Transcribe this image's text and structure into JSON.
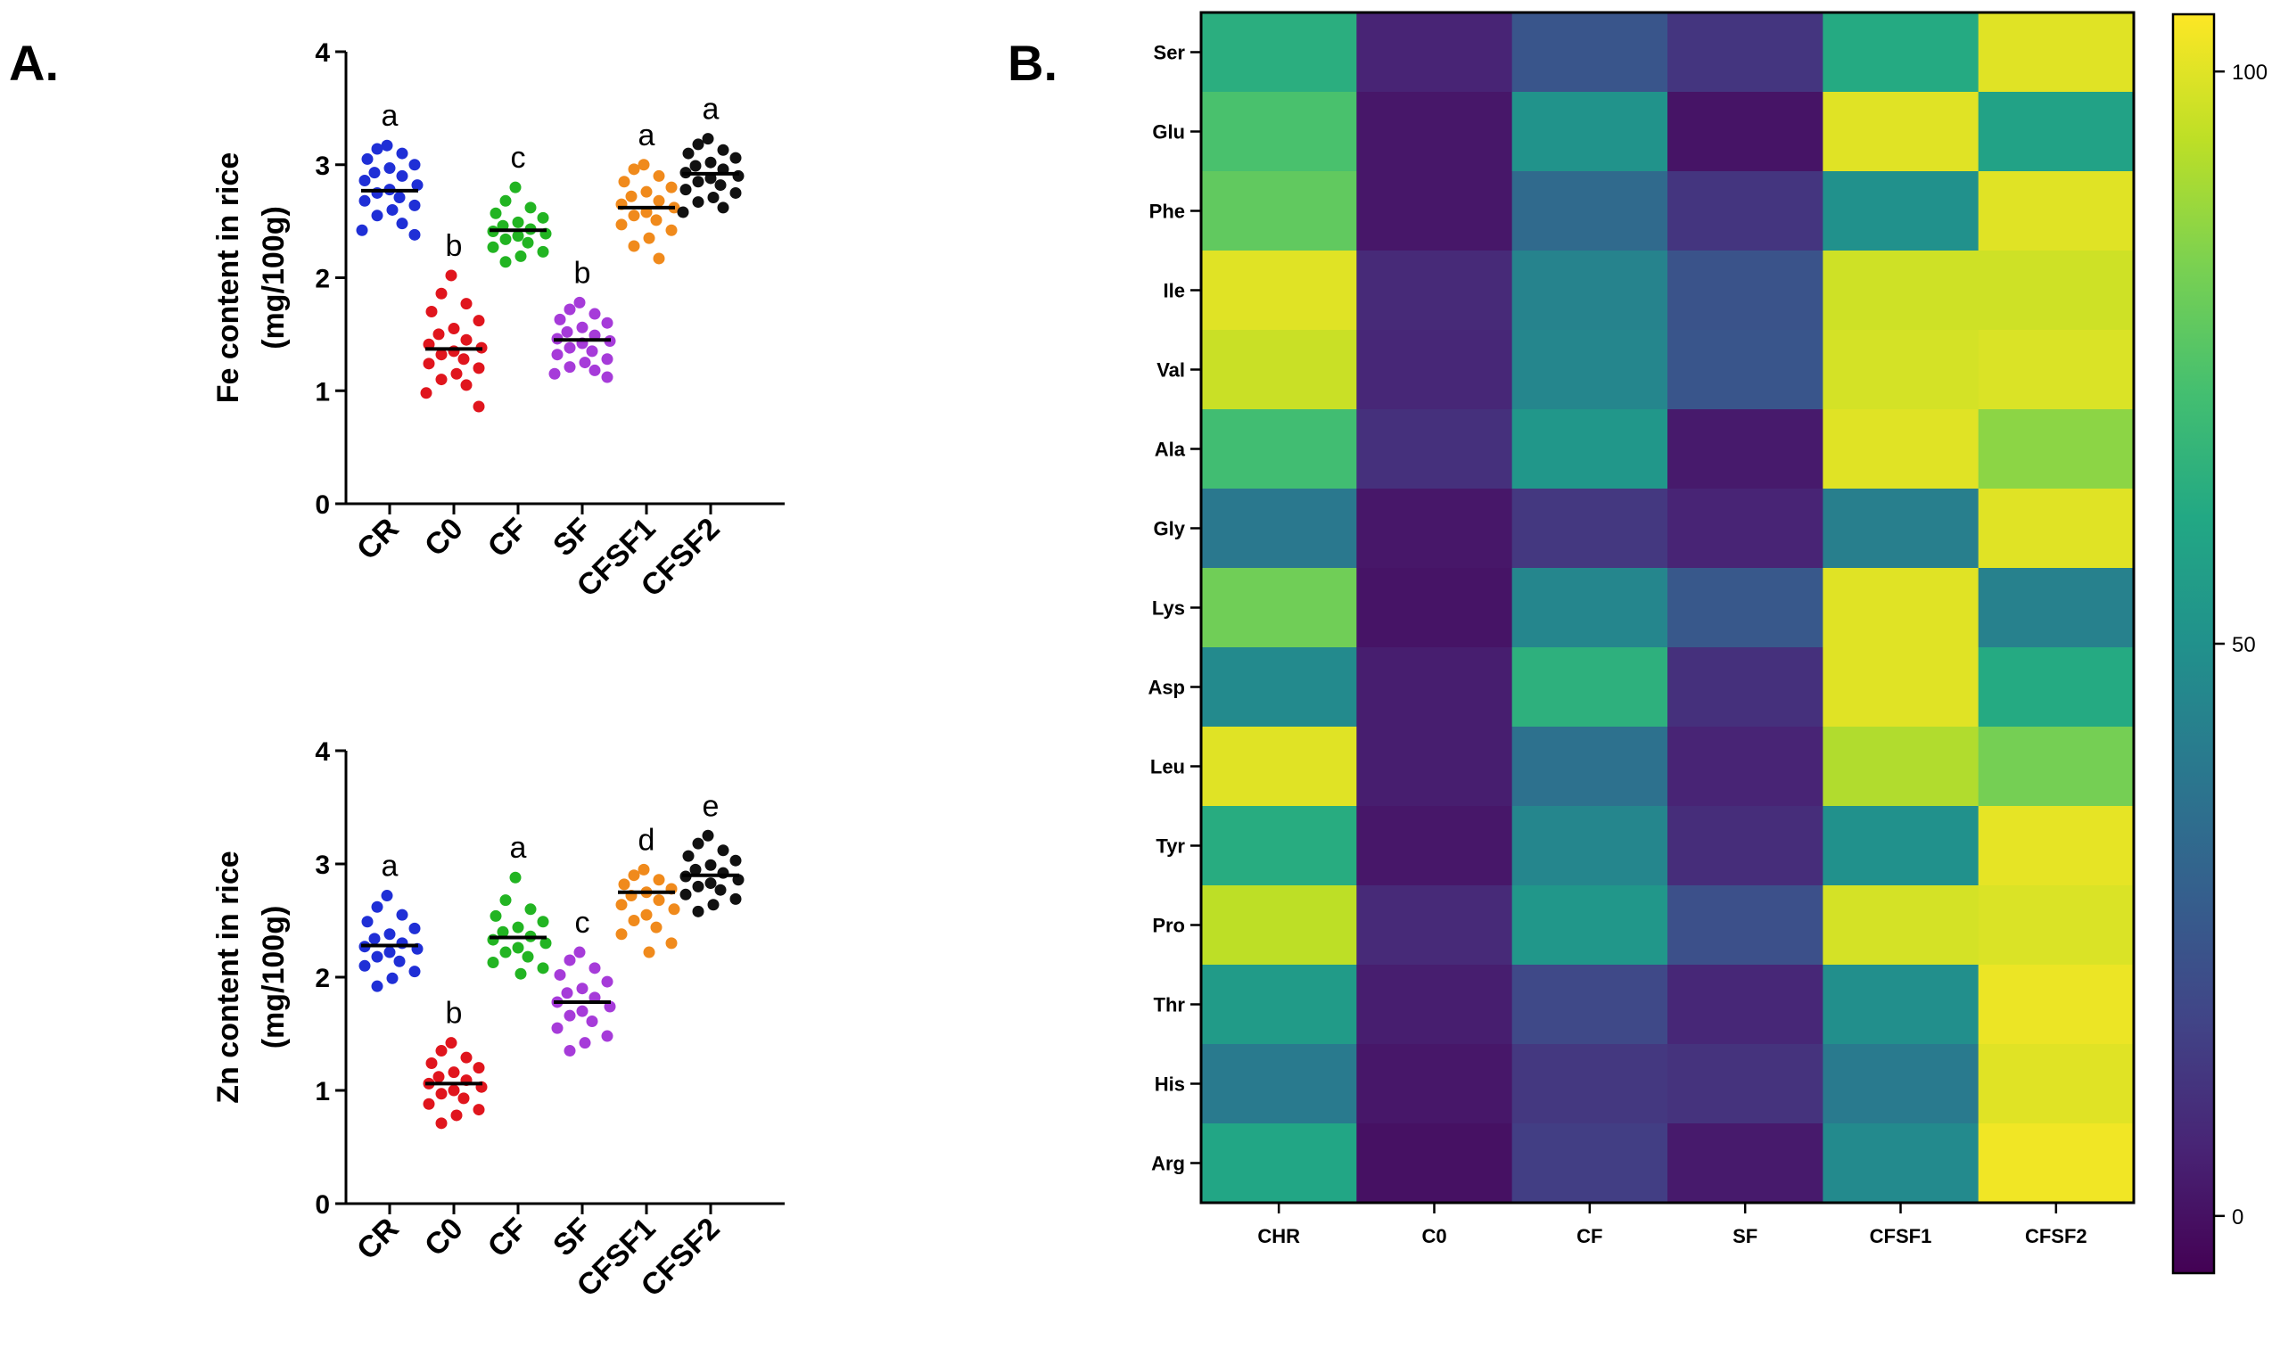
{
  "chart_data": [
    {
      "type": "scatter",
      "panel_label": "A.",
      "ylabel_line1": "Fe content in rice",
      "ylabel_line2": "(mg/100g)",
      "ylim": [
        0,
        4
      ],
      "yticks": [
        "0",
        "1",
        "2",
        "3",
        "4"
      ],
      "categories": [
        "CR",
        "C0",
        "CF",
        "SF",
        "CFSF1",
        "CFSF2"
      ],
      "means": [
        2.77,
        1.37,
        2.42,
        1.45,
        2.62,
        2.92
      ],
      "letters": [
        "a",
        "b",
        "c",
        "b",
        "a",
        "a"
      ],
      "colors": [
        "#1f2fd6",
        "#e0151d",
        "#22b422",
        "#a63bd9",
        "#f08a1c",
        "#111111"
      ],
      "points": [
        [
          3.17,
          3.14,
          3.1,
          3.05,
          3.0,
          2.97,
          2.93,
          2.9,
          2.86,
          2.82,
          2.78,
          2.75,
          2.71,
          2.68,
          2.64,
          2.6,
          2.55,
          2.48,
          2.42,
          2.38
        ],
        [
          2.02,
          1.86,
          1.77,
          1.7,
          1.62,
          1.55,
          1.5,
          1.45,
          1.41,
          1.38,
          1.35,
          1.32,
          1.28,
          1.24,
          1.2,
          1.15,
          1.1,
          1.05,
          0.98,
          0.86
        ],
        [
          2.8,
          2.68,
          2.62,
          2.57,
          2.53,
          2.49,
          2.46,
          2.43,
          2.41,
          2.39,
          2.37,
          2.34,
          2.31,
          2.27,
          2.23,
          2.19,
          2.14
        ],
        [
          1.78,
          1.72,
          1.68,
          1.63,
          1.6,
          1.56,
          1.52,
          1.49,
          1.46,
          1.44,
          1.42,
          1.38,
          1.35,
          1.32,
          1.28,
          1.25,
          1.21,
          1.18,
          1.15,
          1.12
        ],
        [
          3.0,
          2.96,
          2.9,
          2.85,
          2.8,
          2.76,
          2.72,
          2.68,
          2.65,
          2.62,
          2.58,
          2.55,
          2.51,
          2.47,
          2.42,
          2.35,
          2.28,
          2.17
        ],
        [
          3.23,
          3.18,
          3.13,
          3.1,
          3.06,
          3.02,
          2.99,
          2.96,
          2.93,
          2.9,
          2.88,
          2.85,
          2.82,
          2.78,
          2.75,
          2.71,
          2.67,
          2.62,
          2.58
        ]
      ]
    },
    {
      "type": "scatter",
      "ylabel_line1": "Zn content in rice",
      "ylabel_line2": "(mg/100g)",
      "ylim": [
        0,
        4
      ],
      "yticks": [
        "0",
        "1",
        "2",
        "3",
        "4"
      ],
      "categories": [
        "CR",
        "C0",
        "CF",
        "SF",
        "CFSF1",
        "CFSF2"
      ],
      "means": [
        2.28,
        1.06,
        2.35,
        1.78,
        2.75,
        2.9
      ],
      "letters": [
        "a",
        "b",
        "a",
        "c",
        "d",
        "e"
      ],
      "colors": [
        "#1f2fd6",
        "#e0151d",
        "#22b422",
        "#a63bd9",
        "#f08a1c",
        "#111111"
      ],
      "points": [
        [
          2.72,
          2.62,
          2.55,
          2.49,
          2.43,
          2.38,
          2.34,
          2.3,
          2.27,
          2.25,
          2.22,
          2.18,
          2.14,
          2.1,
          2.05,
          1.99,
          1.92
        ],
        [
          1.42,
          1.35,
          1.29,
          1.24,
          1.2,
          1.16,
          1.12,
          1.09,
          1.06,
          1.03,
          1.0,
          0.97,
          0.93,
          0.88,
          0.83,
          0.78,
          0.71
        ],
        [
          2.88,
          2.68,
          2.6,
          2.54,
          2.49,
          2.44,
          2.4,
          2.36,
          2.33,
          2.3,
          2.26,
          2.22,
          2.18,
          2.13,
          2.08,
          2.03
        ],
        [
          2.22,
          2.15,
          2.08,
          2.02,
          1.96,
          1.9,
          1.86,
          1.82,
          1.78,
          1.74,
          1.7,
          1.66,
          1.61,
          1.55,
          1.48,
          1.42,
          1.35
        ],
        [
          2.95,
          2.9,
          2.86,
          2.82,
          2.78,
          2.75,
          2.72,
          2.68,
          2.64,
          2.6,
          2.55,
          2.5,
          2.44,
          2.38,
          2.3,
          2.22
        ],
        [
          3.25,
          3.18,
          3.12,
          3.07,
          3.03,
          2.99,
          2.95,
          2.92,
          2.89,
          2.86,
          2.83,
          2.8,
          2.77,
          2.73,
          2.69,
          2.64,
          2.58
        ]
      ]
    },
    {
      "type": "heatmap",
      "panel_label": "B.",
      "columns": [
        "CHR",
        "C0",
        "CF",
        "SF",
        "CFSF1",
        "CFSF2"
      ],
      "rows": [
        "Ser",
        "Glu",
        "Phe",
        "Ile",
        "Val",
        "Ala",
        "Gly",
        "Lys",
        "Asp",
        "Leu",
        "Tyr",
        "Pro",
        "Thr",
        "His",
        "Arg"
      ],
      "values": [
        [
          64,
          6,
          24,
          12,
          62,
          100
        ],
        [
          73,
          2,
          51,
          1,
          100,
          58
        ],
        [
          78,
          2,
          33,
          12,
          50,
          100
        ],
        [
          100,
          8,
          44,
          23,
          97,
          97
        ],
        [
          96,
          7,
          45,
          24,
          98,
          99
        ],
        [
          71,
          10,
          53,
          3,
          100,
          86
        ],
        [
          39,
          2,
          13,
          6,
          42,
          100
        ],
        [
          81,
          1,
          45,
          25,
          100,
          43
        ],
        [
          47,
          4,
          65,
          10,
          100,
          62
        ],
        [
          100,
          4,
          36,
          6,
          92,
          82
        ],
        [
          63,
          2,
          45,
          9,
          50,
          101
        ],
        [
          94,
          8,
          53,
          22,
          98,
          99
        ],
        [
          55,
          4,
          19,
          7,
          49,
          102
        ],
        [
          40,
          2,
          13,
          11,
          40,
          100
        ],
        [
          60,
          0,
          15,
          3,
          47,
          103
        ]
      ],
      "color_range": [
        -5,
        105
      ],
      "colorbar_ticks": [
        {
          "value": 100,
          "label": "100"
        },
        {
          "value": 50,
          "label": "50"
        },
        {
          "value": 0,
          "label": "0"
        }
      ]
    }
  ]
}
